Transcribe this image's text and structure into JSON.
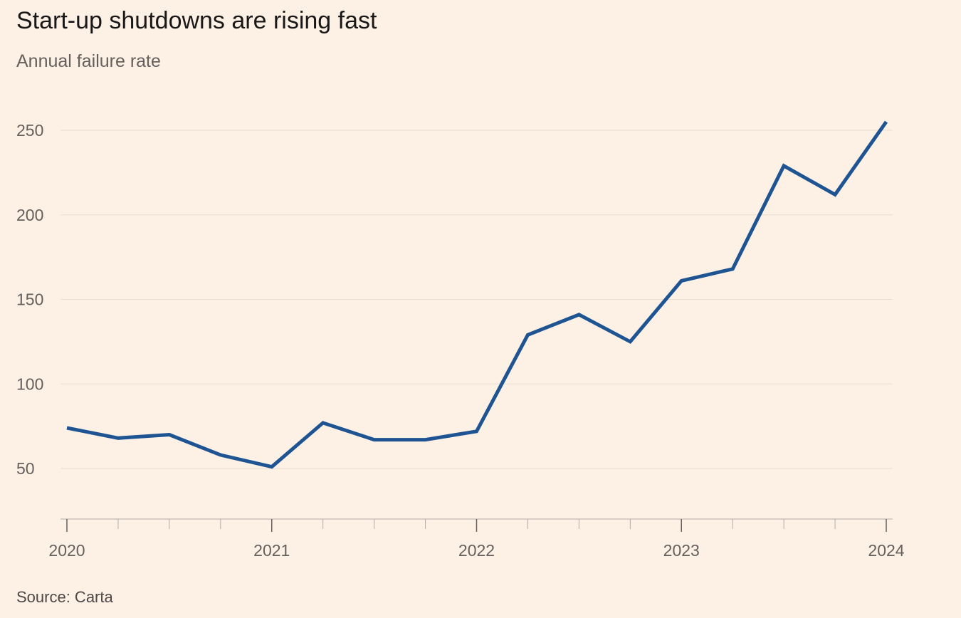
{
  "title": "Start-up shutdowns are rising fast",
  "subtitle": "Annual failure rate",
  "source": "Source: Carta",
  "colors": {
    "background": "#fdf1e6",
    "line": "#1f5493",
    "grid": "#e9ddd2",
    "axis": "#b3aca6"
  },
  "chart_data": {
    "type": "line",
    "title": "Start-up shutdowns are rising fast",
    "subtitle": "Annual failure rate",
    "xlabel": "",
    "ylabel": "",
    "x": [
      2020.0,
      2020.25,
      2020.5,
      2020.75,
      2021.0,
      2021.25,
      2021.5,
      2021.75,
      2022.0,
      2022.25,
      2022.5,
      2022.75,
      2023.0,
      2023.25,
      2023.5,
      2023.75,
      2024.0
    ],
    "series": [
      {
        "values": [
          74,
          68,
          70,
          58,
          51,
          77,
          67,
          67,
          72,
          129,
          141,
          125,
          161,
          168,
          229,
          212,
          255
        ]
      }
    ],
    "xlim": [
      2019.99,
      2024.03
    ],
    "ylim": [
      20,
      265
    ],
    "yticks": [
      50,
      100,
      150,
      200,
      250
    ],
    "xticks_labeled": [
      2020,
      2021,
      2022,
      2023,
      2024
    ],
    "grid": true,
    "legend": "none"
  }
}
